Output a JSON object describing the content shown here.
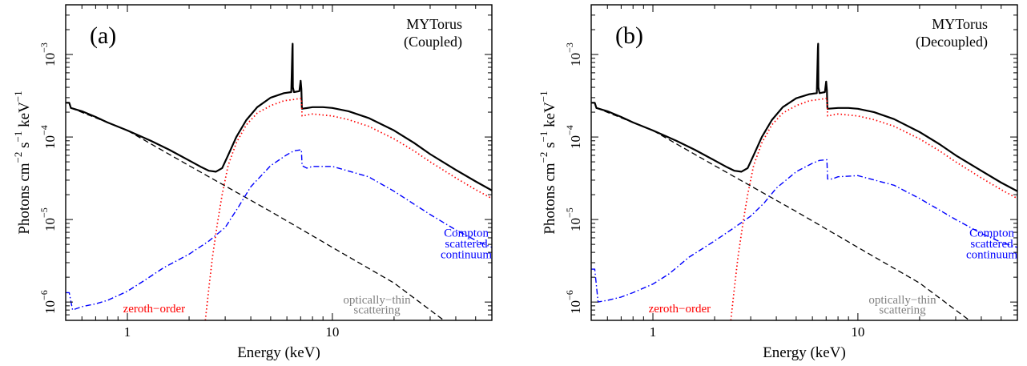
{
  "chart_data": [
    {
      "type": "line",
      "panel_label": "(a)",
      "model_label": [
        "MYTorus",
        "(Coupled)"
      ],
      "xlabel": "Energy (keV)",
      "ylabel": "Photons cm^-2 s^-1 keV^-1",
      "xscale": "log",
      "yscale": "log",
      "xlim": [
        0.5,
        60
      ],
      "ylim": [
        6e-07,
        0.004
      ],
      "x_ticks": [
        {
          "value": 1,
          "label": "1"
        },
        {
          "value": 10,
          "label": "10"
        }
      ],
      "y_ticks": [
        {
          "value": 1e-06,
          "base": "10",
          "exp": "−6"
        },
        {
          "value": 1e-05,
          "base": "10",
          "exp": "−5"
        },
        {
          "value": 0.0001,
          "base": "10",
          "exp": "−4"
        },
        {
          "value": 0.001,
          "base": "10",
          "exp": "−3"
        }
      ],
      "grid": false,
      "annotations": [
        {
          "text": "zeroth−order",
          "color": "#ff0000",
          "x": 1.35,
          "y": 8.2e-07
        },
        {
          "text": "optically−thin",
          "color": "#808080",
          "x": 16.5,
          "y": 1.05e-06
        },
        {
          "text": "scattering",
          "color": "#808080",
          "x": 16.5,
          "y": 7.9e-07
        },
        {
          "text": "Compton",
          "color": "#0000ff",
          "x": 45,
          "y": 6.8e-06
        },
        {
          "text": "scattered",
          "color": "#0000ff",
          "x": 45,
          "y": 5e-06
        },
        {
          "text": "continuum",
          "color": "#0000ff",
          "x": 45,
          "y": 3.7e-06
        }
      ],
      "series": [
        {
          "style": "total",
          "color": "#000000",
          "x": [
            0.5,
            0.52,
            0.53,
            0.6,
            0.7,
            0.8,
            1.0,
            1.3,
            1.6,
            2.0,
            2.3,
            2.5,
            2.7,
            2.9,
            3.1,
            3.4,
            3.8,
            4.3,
            5.0,
            5.8,
            6.3,
            6.38,
            6.4,
            6.42,
            6.5,
            6.9,
            7.0,
            7.06,
            7.1,
            7.12,
            8.0,
            9.0,
            10.0,
            12.0,
            15.0,
            20.0,
            25.0,
            30.0,
            40.0,
            50.0,
            60.0
          ],
          "y": [
            0.00026,
            0.00026,
            0.000225,
            0.000205,
            0.000175,
            0.00015,
            0.00012,
            9e-05,
            7e-05,
            5.2e-05,
            4.3e-05,
            3.9e-05,
            3.8e-05,
            4.2e-05,
            6e-05,
            0.0001,
            0.00016,
            0.00023,
            0.0003,
            0.00034,
            0.00035,
            0.0012,
            0.00135,
            0.0004,
            0.00035,
            0.00036,
            0.00048,
            0.00038,
            0.00023,
            0.00022,
            0.00023,
            0.00023,
            0.000225,
            0.000205,
            0.00017,
            0.00012,
            8.5e-05,
            6.2e-05,
            4e-05,
            2.9e-05,
            2.25e-05
          ]
        },
        {
          "style": "dotted",
          "color": "#ff0000",
          "x": [
            2.4,
            2.5,
            2.6,
            2.75,
            2.9,
            3.1,
            3.4,
            3.8,
            4.3,
            5.0,
            5.8,
            6.5,
            7.06,
            7.12,
            8.0,
            10.0,
            12.0,
            15.0,
            20.0,
            25.0,
            30.0,
            40.0,
            50.0,
            60.0
          ],
          "y": [
            6e-07,
            1.5e-06,
            3.5e-06,
            9e-06,
            2e-05,
            4.5e-05,
            8.5e-05,
            0.00014,
            0.000195,
            0.00024,
            0.000275,
            0.000285,
            0.000295,
            0.00018,
            0.00019,
            0.00018,
            0.000162,
            0.000135,
            9.5e-05,
            6.8e-05,
            5e-05,
            3.2e-05,
            2.3e-05,
            1.8e-05
          ]
        },
        {
          "style": "dashed",
          "color": "#000000",
          "x": [
            0.5,
            0.52,
            0.53,
            1.0,
            2.0,
            5.0,
            10.0,
            20.0,
            35.0
          ],
          "y": [
            0.00026,
            0.00026,
            0.000225,
            0.00012,
            4.5e-05,
            1.25e-05,
            4.6e-06,
            1.7e-06,
            6e-07
          ]
        },
        {
          "style": "dashdot",
          "color": "#0000ff",
          "x": [
            0.5,
            0.52,
            0.54,
            0.6,
            0.7,
            0.8,
            1.0,
            1.2,
            1.5,
            2.0,
            2.5,
            3.0,
            3.5,
            4.0,
            5.0,
            6.0,
            6.5,
            7.06,
            7.12,
            7.5,
            8.0,
            10.0,
            15.0,
            20.0,
            30.0,
            40.0,
            50.0,
            60.0
          ],
          "y": [
            1.3e-06,
            1.3e-06,
            8e-07,
            8.8e-07,
            9.5e-07,
            1.05e-06,
            1.35e-06,
            1.8e-06,
            2.6e-06,
            3.8e-06,
            5.5e-06,
            8e-06,
            1.45e-05,
            2.5e-05,
            4.5e-05,
            6.1e-05,
            6.8e-05,
            7e-05,
            4.5e-05,
            4.2e-05,
            4.4e-05,
            4.4e-05,
            3.3e-05,
            2.2e-05,
            1.15e-05,
            7.5e-06,
            5.6e-06,
            4.6e-06
          ]
        }
      ]
    },
    {
      "type": "line",
      "panel_label": "(b)",
      "model_label": [
        "MYTorus",
        "(Decoupled)"
      ],
      "xlabel": "Energy (keV)",
      "ylabel": "Photons cm^-2 s^-1 keV^-1",
      "xscale": "log",
      "yscale": "log",
      "xlim": [
        0.5,
        60
      ],
      "ylim": [
        6e-07,
        0.004
      ],
      "x_ticks": [
        {
          "value": 1,
          "label": "1"
        },
        {
          "value": 10,
          "label": "10"
        }
      ],
      "y_ticks": [
        {
          "value": 1e-06,
          "base": "10",
          "exp": "−6"
        },
        {
          "value": 1e-05,
          "base": "10",
          "exp": "−5"
        },
        {
          "value": 0.0001,
          "base": "10",
          "exp": "−4"
        },
        {
          "value": 0.001,
          "base": "10",
          "exp": "−3"
        }
      ],
      "grid": false,
      "annotations": [
        {
          "text": "zeroth−order",
          "color": "#ff0000",
          "x": 1.35,
          "y": 8.2e-07
        },
        {
          "text": "optically−thin",
          "color": "#808080",
          "x": 16.5,
          "y": 1.05e-06
        },
        {
          "text": "scattering",
          "color": "#808080",
          "x": 16.5,
          "y": 7.9e-07
        },
        {
          "text": "Compton",
          "color": "#0000ff",
          "x": 45,
          "y": 6.8e-06
        },
        {
          "text": "scattered",
          "color": "#0000ff",
          "x": 45,
          "y": 5e-06
        },
        {
          "text": "continuum",
          "color": "#0000ff",
          "x": 45,
          "y": 3.7e-06
        }
      ],
      "series": [
        {
          "style": "total",
          "color": "#000000",
          "x": [
            0.5,
            0.52,
            0.53,
            0.6,
            0.7,
            0.8,
            1.0,
            1.3,
            1.6,
            2.0,
            2.3,
            2.5,
            2.7,
            2.9,
            3.1,
            3.4,
            3.8,
            4.3,
            5.0,
            5.8,
            6.3,
            6.38,
            6.4,
            6.42,
            6.5,
            6.9,
            7.0,
            7.06,
            7.1,
            7.12,
            8.0,
            9.0,
            10.0,
            12.0,
            15.0,
            20.0,
            25.0,
            30.0,
            40.0,
            50.0,
            60.0
          ],
          "y": [
            0.00026,
            0.00026,
            0.000225,
            0.000205,
            0.000175,
            0.00015,
            0.00012,
            9e-05,
            7e-05,
            5.2e-05,
            4.3e-05,
            3.9e-05,
            3.8e-05,
            4.2e-05,
            6e-05,
            0.0001,
            0.00016,
            0.00023,
            0.000295,
            0.00033,
            0.00034,
            0.0012,
            0.00135,
            0.0004,
            0.00034,
            0.00035,
            0.00047,
            0.00037,
            0.00023,
            0.00022,
            0.000225,
            0.000225,
            0.00022,
            0.0002,
            0.000165,
            0.000115,
            8.2e-05,
            6e-05,
            3.9e-05,
            2.8e-05,
            2.2e-05
          ]
        },
        {
          "style": "dotted",
          "color": "#ff0000",
          "x": [
            2.4,
            2.5,
            2.6,
            2.75,
            2.9,
            3.1,
            3.4,
            3.8,
            4.3,
            5.0,
            5.8,
            6.5,
            7.06,
            7.12,
            8.0,
            10.0,
            12.0,
            15.0,
            20.0,
            25.0,
            30.0,
            40.0,
            50.0,
            60.0
          ],
          "y": [
            6e-07,
            1.5e-06,
            3.5e-06,
            9e-06,
            2e-05,
            4.5e-05,
            8.5e-05,
            0.00014,
            0.000195,
            0.00024,
            0.000275,
            0.000285,
            0.000295,
            0.00018,
            0.00019,
            0.00018,
            0.000162,
            0.000135,
            9.5e-05,
            6.8e-05,
            5e-05,
            3.2e-05,
            2.3e-05,
            1.8e-05
          ]
        },
        {
          "style": "dashed",
          "color": "#000000",
          "x": [
            0.5,
            0.52,
            0.53,
            1.0,
            2.0,
            5.0,
            10.0,
            20.0,
            35.0
          ],
          "y": [
            0.00026,
            0.00026,
            0.000225,
            0.00012,
            4.5e-05,
            1.25e-05,
            4.6e-06,
            1.7e-06,
            6e-07
          ]
        },
        {
          "style": "dashdot",
          "color": "#0000ff",
          "x": [
            0.5,
            0.52,
            0.54,
            0.6,
            0.7,
            0.8,
            1.0,
            1.2,
            1.5,
            2.0,
            2.5,
            3.0,
            3.5,
            4.0,
            5.0,
            6.0,
            6.5,
            7.06,
            7.12,
            7.5,
            8.0,
            10.0,
            15.0,
            20.0,
            30.0,
            40.0,
            50.0,
            60.0
          ],
          "y": [
            2.5e-06,
            2.5e-06,
            1e-06,
            1.05e-06,
            1.15e-06,
            1.3e-06,
            1.65e-06,
            2.2e-06,
            3.5e-06,
            5.5e-06,
            8e-06,
            1.1e-05,
            1.6e-05,
            2.4e-05,
            3.8e-05,
            4.8e-05,
            5.2e-05,
            5.3e-05,
            3.1e-05,
            3.1e-05,
            3.3e-05,
            3.4e-05,
            2.6e-05,
            1.8e-05,
            1e-05,
            6.8e-06,
            5.3e-06,
            4.6e-06
          ]
        }
      ]
    }
  ]
}
